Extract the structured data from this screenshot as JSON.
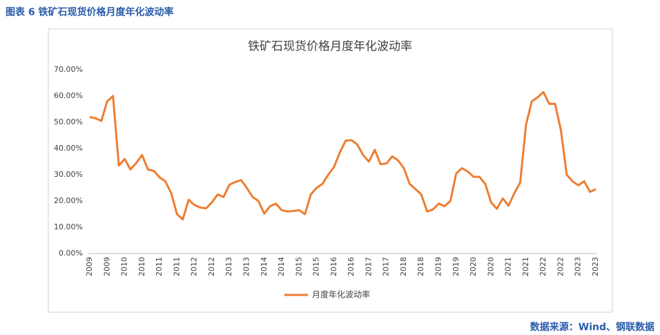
{
  "caption": "图表 6  铁矿石现货价格月度年化波动率",
  "source": "数据来源：Wind、钢联数据",
  "chart_data": {
    "type": "line",
    "title": "铁矿石现货价格月度年化波动率",
    "categories": [
      "2009",
      null,
      null,
      "2009",
      null,
      null,
      "2010",
      null,
      null,
      "2010",
      null,
      null,
      "2011",
      null,
      null,
      "2011",
      null,
      null,
      "2012",
      null,
      null,
      "2012",
      null,
      null,
      "2013",
      null,
      null,
      "2013",
      null,
      null,
      "2014",
      null,
      null,
      "2014",
      null,
      null,
      "2015",
      null,
      null,
      "2015",
      null,
      null,
      "2016",
      null,
      null,
      "2016",
      null,
      null,
      "2017",
      null,
      null,
      "2017",
      null,
      null,
      "2018",
      null,
      null,
      "2018",
      null,
      null,
      "2019",
      null,
      null,
      "2019",
      null,
      null,
      "2020",
      null,
      null,
      "2020",
      null,
      null,
      "2021",
      null,
      null,
      "2021",
      null,
      null,
      "2022",
      null,
      null,
      "2022",
      null,
      null,
      "2023",
      null,
      null,
      "2023"
    ],
    "series": [
      {
        "name": "月度年化波动率",
        "color": "#ed7d31",
        "values": [
          52,
          51.5,
          50.5,
          58,
          60,
          33.5,
          36,
          32,
          34.5,
          37.5,
          32,
          31.5,
          29,
          27.5,
          23,
          15,
          13,
          20.5,
          18.5,
          17.5,
          17.2,
          19.5,
          22.5,
          21.5,
          26.2,
          27.2,
          28,
          25,
          21.5,
          20,
          15.2,
          18,
          19,
          16.5,
          16,
          16.2,
          16.5,
          15,
          22.5,
          25,
          26.5,
          30,
          33,
          38.5,
          43,
          43.2,
          41.5,
          37.5,
          35,
          39.5,
          34,
          34.3,
          37,
          35.5,
          32.5,
          26.5,
          24.5,
          22.5,
          16,
          16.8,
          19,
          18,
          20,
          30.5,
          32.5,
          31.2,
          29.2,
          29.2,
          26.5,
          19.5,
          17,
          21,
          18.2,
          23,
          27,
          49,
          58,
          59.5,
          61.5,
          57,
          57,
          47,
          30,
          27.5,
          26,
          27.5,
          23.5,
          24.5
        ]
      }
    ],
    "ylim": [
      0,
      70
    ],
    "yticks": [
      {
        "value": 0,
        "label": "0.00%"
      },
      {
        "value": 10,
        "label": "10.00%"
      },
      {
        "value": 20,
        "label": "20.00%"
      },
      {
        "value": 30,
        "label": "30.00%"
      },
      {
        "value": 40,
        "label": "40.00%"
      },
      {
        "value": 50,
        "label": "50.00%"
      },
      {
        "value": 60,
        "label": "60.00%"
      },
      {
        "value": 70,
        "label": "70.00%"
      }
    ],
    "grid": false,
    "legend": "bottom"
  }
}
